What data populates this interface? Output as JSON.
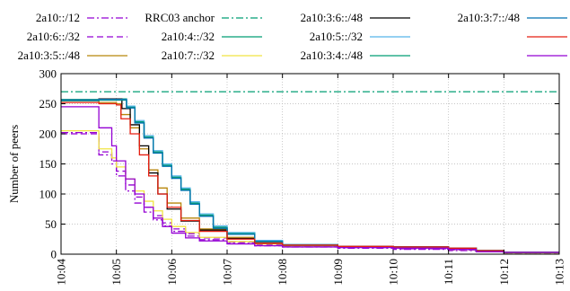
{
  "chart_data": {
    "type": "line",
    "title": "",
    "xlabel": "",
    "ylabel": "Number of peers",
    "ylim": [
      0,
      300
    ],
    "yticks": [
      "0",
      "50",
      "100",
      "150",
      "200",
      "250",
      "300"
    ],
    "xticks": [
      "10:04",
      "10:05",
      "10:06",
      "10:07",
      "10:08",
      "10:09",
      "10:10",
      "10:11",
      "10:12",
      "10:13"
    ],
    "xlim": [
      "10:04",
      "10:13"
    ],
    "grid": true,
    "legend_position": "top",
    "series": [
      {
        "name": "2a10::/12",
        "color": "#9400d3",
        "dash": "dashdot",
        "x": [
          "10:04:00",
          "10:04:40",
          "10:04:41",
          "10:04:55",
          "10:05:00",
          "10:05:10",
          "10:05:20",
          "10:05:30",
          "10:05:40",
          "10:05:50",
          "10:06:00",
          "10:06:15",
          "10:06:30",
          "10:07:00",
          "10:07:30",
          "10:08:00",
          "10:09:00",
          "10:10:00",
          "10:11:00",
          "10:11:30",
          "10:12:00",
          "10:13:00"
        ],
        "y": [
          202,
          202,
          165,
          150,
          130,
          105,
          85,
          70,
          57,
          47,
          38,
          30,
          24,
          18,
          14,
          12,
          10,
          8,
          6,
          4,
          2,
          2
        ]
      },
      {
        "name": "2a10:6::/32",
        "color": "#9400d3",
        "dash": "dashed",
        "x": [
          "10:04:00",
          "10:04:40",
          "10:04:41",
          "10:04:55",
          "10:05:00",
          "10:05:10",
          "10:05:20",
          "10:05:30",
          "10:05:40",
          "10:05:50",
          "10:06:00",
          "10:06:15",
          "10:06:30",
          "10:07:00",
          "10:07:30",
          "10:08:00",
          "10:09:00",
          "10:10:00",
          "10:11:00",
          "10:11:30",
          "10:12:00",
          "10:13:00"
        ],
        "y": [
          200,
          200,
          170,
          155,
          138,
          115,
          95,
          78,
          64,
          52,
          42,
          34,
          27,
          20,
          16,
          13,
          11,
          9,
          7,
          4,
          2,
          2
        ]
      },
      {
        "name": "2a10:3:5::/48",
        "color": "#b8860b",
        "dash": "solid",
        "x": [
          "10:04:00",
          "10:04:40",
          "10:04:41",
          "10:05:00",
          "10:05:05",
          "10:05:15",
          "10:05:25",
          "10:05:35",
          "10:05:45",
          "10:05:55",
          "10:06:10",
          "10:06:30",
          "10:07:00",
          "10:07:30",
          "10:08:00",
          "10:09:00",
          "10:10:00",
          "10:11:00",
          "10:11:30",
          "10:12:00",
          "10:13:00"
        ],
        "y": [
          255,
          255,
          252,
          250,
          232,
          210,
          175,
          140,
          110,
          85,
          60,
          42,
          28,
          20,
          16,
          13,
          12,
          10,
          6,
          3,
          3
        ]
      },
      {
        "name": "RRC03 anchor",
        "color": "#009e73",
        "dash": "dashdot",
        "x": [
          "10:04:00",
          "10:13:00"
        ],
        "y": [
          270,
          270
        ]
      },
      {
        "name": "2a10:4::/32",
        "color": "#009e73",
        "dash": "solid",
        "x": [
          "10:04:00",
          "10:04:40",
          "10:04:41",
          "10:05:10",
          "10:05:11",
          "10:05:20",
          "10:05:30",
          "10:05:40",
          "10:05:50",
          "10:06:00",
          "10:06:10",
          "10:06:20",
          "10:06:30",
          "10:06:45",
          "10:07:00",
          "10:07:30",
          "10:08:00",
          "10:09:00",
          "10:10:00",
          "10:11:00",
          "10:11:30",
          "10:12:00",
          "10:13:00"
        ],
        "y": [
          257,
          257,
          258,
          258,
          245,
          220,
          195,
          170,
          148,
          128,
          108,
          85,
          65,
          45,
          35,
          22,
          16,
          13,
          12,
          10,
          6,
          3,
          3
        ]
      },
      {
        "name": "2a10:7::/32",
        "color": "#f0e442",
        "dash": "solid",
        "x": [
          "10:04:00",
          "10:04:40",
          "10:04:41",
          "10:04:55",
          "10:05:00",
          "10:05:10",
          "10:05:20",
          "10:05:30",
          "10:05:40",
          "10:05:50",
          "10:06:00",
          "10:06:15",
          "10:06:30",
          "10:07:00",
          "10:07:30",
          "10:08:00",
          "10:09:00",
          "10:10:00",
          "10:11:00",
          "10:11:30",
          "10:12:00",
          "10:13:00"
        ],
        "y": [
          205,
          205,
          175,
          160,
          145,
          125,
          105,
          88,
          72,
          58,
          46,
          36,
          28,
          21,
          17,
          14,
          12,
          10,
          8,
          4,
          2,
          2
        ]
      },
      {
        "name": "2a10:3:6::/48",
        "color": "#000000",
        "dash": "solid",
        "x": [
          "10:04:00",
          "10:04:40",
          "10:04:41",
          "10:05:05",
          "10:05:06",
          "10:05:15",
          "10:05:25",
          "10:05:35",
          "10:05:45",
          "10:05:55",
          "10:06:10",
          "10:06:30",
          "10:07:00",
          "10:07:30",
          "10:08:00",
          "10:09:00",
          "10:10:00",
          "10:11:00",
          "10:11:30",
          "10:12:00",
          "10:13:00"
        ],
        "y": [
          256,
          256,
          258,
          258,
          242,
          215,
          180,
          135,
          100,
          75,
          55,
          40,
          26,
          18,
          15,
          13,
          12,
          10,
          6,
          3,
          3
        ]
      },
      {
        "name": "2a10:5::/32",
        "color": "#56b4e9",
        "dash": "solid",
        "x": [
          "10:04:00",
          "10:04:40",
          "10:04:41",
          "10:05:10",
          "10:05:11",
          "10:05:20",
          "10:05:30",
          "10:05:40",
          "10:05:50",
          "10:06:00",
          "10:06:10",
          "10:06:20",
          "10:06:30",
          "10:06:45",
          "10:07:00",
          "10:07:30",
          "10:08:00",
          "10:09:00",
          "10:10:00",
          "10:11:00",
          "10:11:30",
          "10:12:00",
          "10:13:00"
        ],
        "y": [
          256,
          256,
          257,
          257,
          246,
          222,
          197,
          172,
          150,
          130,
          110,
          87,
          67,
          47,
          36,
          23,
          16,
          13,
          12,
          10,
          6,
          3,
          3
        ]
      },
      {
        "name": "2a10:3:4::/48",
        "color": "#009e73",
        "dash": "solid",
        "x": [
          "10:04:00",
          "10:04:40",
          "10:04:41",
          "10:05:10",
          "10:05:11",
          "10:05:20",
          "10:05:30",
          "10:05:40",
          "10:05:50",
          "10:06:00",
          "10:06:10",
          "10:06:20",
          "10:06:30",
          "10:06:45",
          "10:07:00",
          "10:07:30",
          "10:08:00",
          "10:09:00",
          "10:10:00",
          "10:11:00",
          "10:11:30",
          "10:12:00",
          "10:13:00"
        ],
        "y": [
          255,
          255,
          256,
          256,
          244,
          219,
          194,
          169,
          147,
          127,
          107,
          84,
          64,
          44,
          34,
          21,
          15,
          13,
          12,
          10,
          6,
          3,
          3
        ]
      },
      {
        "name": "2a10:3:7::/48",
        "color": "#0072b2",
        "dash": "solid",
        "x": [
          "10:04:00",
          "10:04:40",
          "10:04:41",
          "10:05:10",
          "10:05:11",
          "10:05:20",
          "10:05:30",
          "10:05:40",
          "10:05:50",
          "10:06:00",
          "10:06:10",
          "10:06:20",
          "10:06:30",
          "10:06:45",
          "10:07:00",
          "10:07:30",
          "10:08:00",
          "10:09:00",
          "10:10:00",
          "10:11:00",
          "10:11:30",
          "10:12:00",
          "10:13:00"
        ],
        "y": [
          256,
          256,
          257,
          257,
          243,
          218,
          193,
          168,
          146,
          126,
          106,
          83,
          63,
          43,
          33,
          21,
          15,
          13,
          12,
          10,
          6,
          3,
          3
        ]
      },
      {
        "name": "",
        "color": "#e51e10",
        "dash": "solid",
        "x": [
          "10:04:00",
          "10:04:40",
          "10:04:41",
          "10:05:00",
          "10:05:05",
          "10:05:15",
          "10:05:25",
          "10:05:35",
          "10:05:45",
          "10:05:55",
          "10:06:10",
          "10:06:30",
          "10:07:00",
          "10:07:30",
          "10:08:00",
          "10:09:00",
          "10:10:00",
          "10:11:00",
          "10:11:30",
          "10:12:00",
          "10:13:00"
        ],
        "y": [
          252,
          252,
          250,
          248,
          225,
          200,
          165,
          130,
          100,
          78,
          56,
          38,
          25,
          18,
          15,
          13,
          12,
          10,
          6,
          3,
          3
        ]
      },
      {
        "name": "",
        "color": "#9400d3",
        "dash": "solid",
        "x": [
          "10:04:00",
          "10:04:40",
          "10:04:41",
          "10:04:55",
          "10:05:00",
          "10:05:10",
          "10:05:20",
          "10:05:30",
          "10:05:40",
          "10:05:50",
          "10:06:00",
          "10:06:15",
          "10:06:30",
          "10:07:00",
          "10:07:30",
          "10:08:00",
          "10:09:00",
          "10:10:00",
          "10:11:00",
          "10:11:30",
          "10:12:00",
          "10:13:00"
        ],
        "y": [
          245,
          245,
          210,
          180,
          155,
          125,
          100,
          78,
          60,
          46,
          35,
          27,
          22,
          17,
          14,
          12,
          11,
          10,
          8,
          4,
          3,
          3
        ]
      }
    ]
  }
}
